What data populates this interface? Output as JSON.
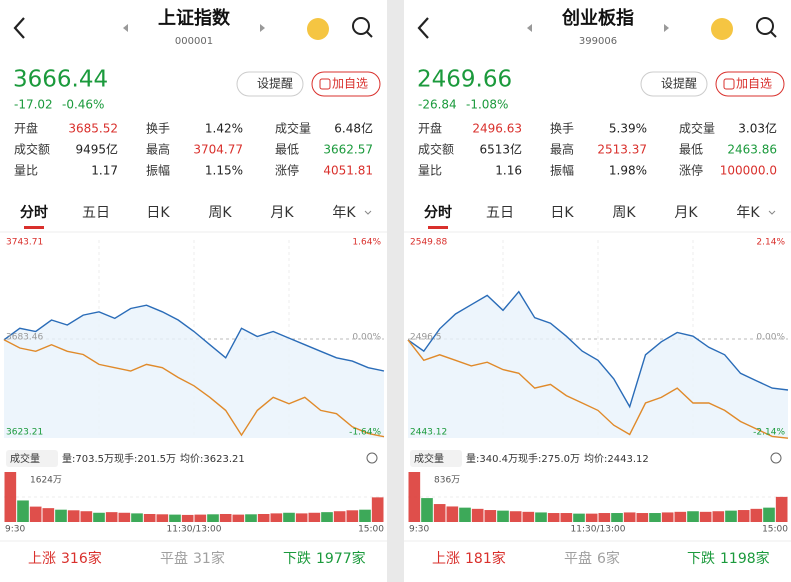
{
  "panels": [
    {
      "title": "上证指数",
      "code": "000001",
      "price": "3666.44",
      "change": "-17.02",
      "change_pct": "-0.46%",
      "buttons": [
        "设提醒",
        "加自选"
      ],
      "stats": [
        [
          {
            "label": "开盘",
            "value": "3685.52",
            "color": "#d9302c"
          },
          {
            "label": "换手",
            "value": "1.42%",
            "color": "#222222"
          },
          {
            "label": "成交量",
            "value": "6.48亿",
            "color": "#222222"
          }
        ],
        [
          {
            "label": "成交额",
            "value": "9495亿",
            "color": "#222222"
          },
          {
            "label": "最高",
            "value": "3704.77",
            "color": "#d9302c"
          },
          {
            "label": "最低",
            "value": "3662.57",
            "color": "#1b9a3c"
          }
        ],
        [
          {
            "label": "量比",
            "value": "1.17",
            "color": "#222222"
          },
          {
            "label": "振幅",
            "value": "1.15%",
            "color": "#222222"
          },
          {
            "label": "涨停",
            "value": "4051.81",
            "color": "#d9302c"
          }
        ]
      ],
      "tabs": [
        "分时",
        "五日",
        "日K",
        "周K",
        "月K",
        "年K"
      ],
      "chart": {
        "ylim": [
          3623.21,
          3743.71
        ],
        "base": 3683.46,
        "pct_top": "1.64%",
        "pct_mid": "0.00%",
        "pct_bottom": "-1.64%",
        "series": [
          {
            "color": "#2a6cb8",
            "values": [
              3683,
              3690,
              3688,
              3695,
              3692,
              3698,
              3700,
              3696,
              3702,
              3704,
              3700,
              3695,
              3688,
              3680,
              3672,
              3690,
              3685,
              3688,
              3684,
              3680,
              3676,
              3672,
              3670,
              3666,
              3664
            ]
          },
          {
            "color": "#e08a2a",
            "values": [
              3683,
              3678,
              3676,
              3680,
              3676,
              3674,
              3668,
              3666,
              3664,
              3668,
              3666,
              3660,
              3655,
              3648,
              3640,
              3625,
              3640,
              3648,
              3644,
              3648,
              3640,
              3638,
              3630,
              3626,
              3624
            ]
          }
        ]
      },
      "volume": {
        "label": "成交量",
        "info": [
          "量:703.5万",
          "现手:201.5万",
          "均价:3623.21"
        ],
        "max_label": "1624万",
        "vlim": [
          0,
          1624
        ],
        "values": [
          1624,
          700,
          500,
          450,
          400,
          380,
          350,
          300,
          320,
          300,
          280,
          260,
          250,
          240,
          230,
          240,
          250,
          260,
          240,
          250,
          260,
          280,
          300,
          280,
          300,
          320,
          350,
          380,
          400,
          800
        ],
        "times": [
          "9:30",
          "11:30/13:00",
          "15:00"
        ]
      },
      "footer": [
        {
          "label": "上涨",
          "value": "316家",
          "color": "#d9302c"
        },
        {
          "label": "平盘",
          "value": "31家",
          "color": "#a0a0a0"
        },
        {
          "label": "下跌",
          "value": "1977家",
          "color": "#1b9a3c"
        }
      ]
    },
    {
      "title": "创业板指",
      "code": "399006",
      "price": "2469.66",
      "change": "-26.84",
      "change_pct": "-1.08%",
      "buttons": [
        "设提醒",
        "加自选"
      ],
      "stats": [
        [
          {
            "label": "开盘",
            "value": "2496.63",
            "color": "#d9302c"
          },
          {
            "label": "换手",
            "value": "5.39%",
            "color": "#222222"
          },
          {
            "label": "成交量",
            "value": "3.03亿",
            "color": "#222222"
          }
        ],
        [
          {
            "label": "成交额",
            "value": "6513亿",
            "color": "#222222"
          },
          {
            "label": "最高",
            "value": "2513.37",
            "color": "#d9302c"
          },
          {
            "label": "最低",
            "value": "2463.86",
            "color": "#1b9a3c"
          }
        ],
        [
          {
            "label": "量比",
            "value": "1.16",
            "color": "#222222"
          },
          {
            "label": "振幅",
            "value": "1.98%",
            "color": "#222222"
          },
          {
            "label": "涨停",
            "value": "100000.0",
            "color": "#d9302c"
          }
        ]
      ],
      "tabs": [
        "分时",
        "五日",
        "日K",
        "周K",
        "月K",
        "年K"
      ],
      "chart": {
        "ylim": [
          2443.12,
          2549.88
        ],
        "base": 2496.5,
        "pct_top": "2.14%",
        "pct_mid": "0.00%",
        "pct_bottom": "-2.14%",
        "series": [
          {
            "color": "#2a6cb8",
            "values": [
              2496,
              2490,
              2502,
              2510,
              2515,
              2520,
              2512,
              2522,
              2508,
              2505,
              2498,
              2490,
              2485,
              2475,
              2460,
              2488,
              2495,
              2500,
              2498,
              2492,
              2488,
              2478,
              2474,
              2470,
              2469
            ]
          },
          {
            "color": "#e08a2a",
            "values": [
              2496,
              2485,
              2488,
              2485,
              2482,
              2484,
              2480,
              2478,
              2470,
              2472,
              2466,
              2462,
              2458,
              2450,
              2445,
              2462,
              2465,
              2470,
              2462,
              2462,
              2458,
              2452,
              2448,
              2444,
              2443
            ]
          }
        ]
      },
      "volume": {
        "label": "成交量",
        "info": [
          "量:340.4万",
          "现手:275.0万",
          "均价:2443.12"
        ],
        "max_label": "836万",
        "vlim": [
          0,
          836
        ],
        "values": [
          836,
          400,
          300,
          260,
          240,
          220,
          200,
          190,
          180,
          170,
          160,
          150,
          150,
          140,
          140,
          150,
          150,
          160,
          150,
          150,
          160,
          170,
          180,
          170,
          180,
          190,
          200,
          220,
          240,
          420
        ],
        "times": [
          "9:30",
          "11:30/13:00",
          "15:00"
        ]
      },
      "footer": [
        {
          "label": "上涨",
          "value": "181家",
          "color": "#d9302c"
        },
        {
          "label": "平盘",
          "value": "6家",
          "color": "#a0a0a0"
        },
        {
          "label": "下跌",
          "value": "1198家",
          "color": "#1b9a3c"
        }
      ]
    }
  ]
}
